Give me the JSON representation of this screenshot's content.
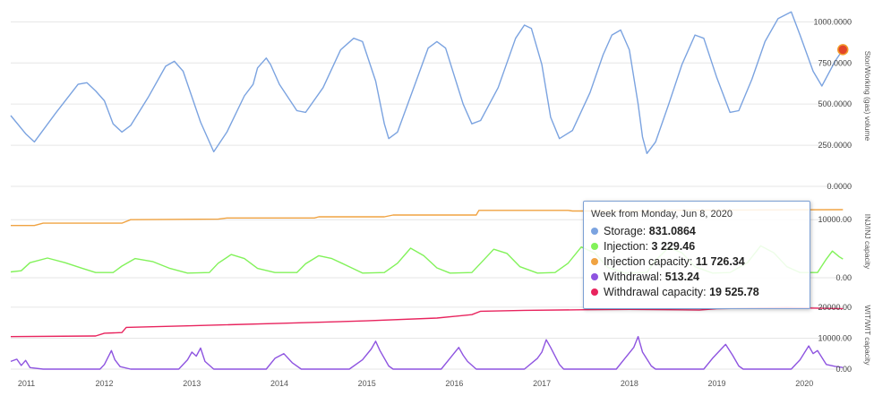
{
  "colors": {
    "storage": "#7ba3e0",
    "injection": "#82f25a",
    "injection_capacity": "#f0a342",
    "withdrawal": "#8e54e0",
    "withdrawal_capacity": "#e8245e",
    "gridline": "#e6e6e6"
  },
  "chart_data": [
    {
      "type": "line",
      "pane": "storage",
      "ylabel": "Stor/Working (gas) volume",
      "ylim": [
        0,
        1100
      ],
      "yticks": [
        "0.0000",
        "250.0000",
        "500.0000",
        "750.0000",
        "1000.0000"
      ],
      "ytick_values": [
        0,
        250,
        500,
        750,
        1000
      ],
      "x_ticks": [
        "2011",
        "2012",
        "2013",
        "2014",
        "2015",
        "2016",
        "2017",
        "2018",
        "2019",
        "2020"
      ],
      "x_tick_values": [
        2011,
        2012,
        2013,
        2014,
        2015,
        2016,
        2017,
        2018,
        2019,
        2020
      ],
      "xlim": [
        2010.93,
        2020.55
      ],
      "series": [
        {
          "key": "storage",
          "points": [
            [
              2010.93,
              430
            ],
            [
              2011.1,
              320
            ],
            [
              2011.2,
              270
            ],
            [
              2011.45,
              450
            ],
            [
              2011.7,
              620
            ],
            [
              2011.8,
              630
            ],
            [
              2011.9,
              580
            ],
            [
              2012.0,
              520
            ],
            [
              2012.1,
              380
            ],
            [
              2012.2,
              330
            ],
            [
              2012.3,
              370
            ],
            [
              2012.5,
              540
            ],
            [
              2012.7,
              730
            ],
            [
              2012.8,
              760
            ],
            [
              2012.9,
              700
            ],
            [
              2013.1,
              390
            ],
            [
              2013.25,
              210
            ],
            [
              2013.4,
              330
            ],
            [
              2013.6,
              550
            ],
            [
              2013.7,
              620
            ],
            [
              2013.75,
              720
            ],
            [
              2013.85,
              780
            ],
            [
              2013.9,
              740
            ],
            [
              2014.0,
              620
            ],
            [
              2014.2,
              460
            ],
            [
              2014.3,
              450
            ],
            [
              2014.5,
              600
            ],
            [
              2014.7,
              830
            ],
            [
              2014.85,
              900
            ],
            [
              2014.95,
              880
            ],
            [
              2015.1,
              640
            ],
            [
              2015.2,
              380
            ],
            [
              2015.25,
              290
            ],
            [
              2015.35,
              330
            ],
            [
              2015.55,
              620
            ],
            [
              2015.7,
              840
            ],
            [
              2015.8,
              880
            ],
            [
              2015.9,
              840
            ],
            [
              2016.1,
              500
            ],
            [
              2016.2,
              380
            ],
            [
              2016.3,
              400
            ],
            [
              2016.5,
              600
            ],
            [
              2016.7,
              900
            ],
            [
              2016.8,
              980
            ],
            [
              2016.88,
              960
            ],
            [
              2017.0,
              740
            ],
            [
              2017.1,
              420
            ],
            [
              2017.2,
              290
            ],
            [
              2017.35,
              340
            ],
            [
              2017.55,
              570
            ],
            [
              2017.7,
              800
            ],
            [
              2017.8,
              920
            ],
            [
              2017.9,
              950
            ],
            [
              2018.0,
              830
            ],
            [
              2018.1,
              500
            ],
            [
              2018.15,
              300
            ],
            [
              2018.2,
              200
            ],
            [
              2018.3,
              270
            ],
            [
              2018.45,
              500
            ],
            [
              2018.6,
              740
            ],
            [
              2018.75,
              920
            ],
            [
              2018.85,
              900
            ],
            [
              2019.0,
              660
            ],
            [
              2019.15,
              450
            ],
            [
              2019.25,
              460
            ],
            [
              2019.4,
              650
            ],
            [
              2019.55,
              880
            ],
            [
              2019.7,
              1020
            ],
            [
              2019.85,
              1060
            ],
            [
              2019.95,
              920
            ],
            [
              2020.1,
              700
            ],
            [
              2020.2,
              610
            ],
            [
              2020.35,
              760
            ],
            [
              2020.44,
              831
            ]
          ]
        }
      ],
      "marker": {
        "series": "storage",
        "x": 2020.44,
        "y": 831.0864
      }
    },
    {
      "type": "line",
      "pane": "injection",
      "ylabel": "INJ/INJ capacity",
      "ylim": [
        0,
        12500
      ],
      "yticks": [
        "0.00",
        "10000.00"
      ],
      "ytick_values": [
        0,
        10000
      ],
      "series": [
        {
          "key": "injection_capacity",
          "points": [
            [
              2010.93,
              9000
            ],
            [
              2011.2,
              9000
            ],
            [
              2011.3,
              9400
            ],
            [
              2012.2,
              9400
            ],
            [
              2012.3,
              10000
            ],
            [
              2013.3,
              10100
            ],
            [
              2013.4,
              10300
            ],
            [
              2014.4,
              10300
            ],
            [
              2014.45,
              10500
            ],
            [
              2015.2,
              10500
            ],
            [
              2015.3,
              10800
            ],
            [
              2016.25,
              10800
            ],
            [
              2016.28,
              11600
            ],
            [
              2017.3,
              11600
            ],
            [
              2017.35,
              11500
            ],
            [
              2018.0,
              11500
            ],
            [
              2018.3,
              11500
            ],
            [
              2018.4,
              11600
            ],
            [
              2020.44,
              11726
            ]
          ]
        },
        {
          "key": "injection",
          "points": [
            [
              2010.93,
              1000
            ],
            [
              2011.05,
              1200
            ],
            [
              2011.15,
              2600
            ],
            [
              2011.35,
              3400
            ],
            [
              2011.55,
              2600
            ],
            [
              2011.75,
              1600
            ],
            [
              2011.9,
              900
            ],
            [
              2012.1,
              900
            ],
            [
              2012.2,
              2000
            ],
            [
              2012.35,
              3300
            ],
            [
              2012.55,
              2800
            ],
            [
              2012.75,
              1600
            ],
            [
              2012.95,
              800
            ],
            [
              2013.2,
              900
            ],
            [
              2013.3,
              2500
            ],
            [
              2013.45,
              4000
            ],
            [
              2013.6,
              3300
            ],
            [
              2013.75,
              1600
            ],
            [
              2013.95,
              900
            ],
            [
              2014.2,
              900
            ],
            [
              2014.3,
              2400
            ],
            [
              2014.45,
              3800
            ],
            [
              2014.6,
              3300
            ],
            [
              2014.8,
              1900
            ],
            [
              2014.95,
              800
            ],
            [
              2015.2,
              900
            ],
            [
              2015.35,
              2500
            ],
            [
              2015.5,
              5100
            ],
            [
              2015.65,
              3800
            ],
            [
              2015.8,
              1700
            ],
            [
              2015.95,
              800
            ],
            [
              2016.2,
              900
            ],
            [
              2016.3,
              2500
            ],
            [
              2016.45,
              4900
            ],
            [
              2016.6,
              4200
            ],
            [
              2016.75,
              1900
            ],
            [
              2016.95,
              800
            ],
            [
              2017.15,
              900
            ],
            [
              2017.3,
              2500
            ],
            [
              2017.45,
              5300
            ],
            [
              2017.6,
              4300
            ],
            [
              2017.75,
              1800
            ],
            [
              2017.95,
              800
            ],
            [
              2018.2,
              900
            ],
            [
              2018.3,
              3000
            ],
            [
              2018.45,
              5200
            ],
            [
              2018.6,
              4300
            ],
            [
              2018.75,
              1900
            ],
            [
              2018.95,
              800
            ],
            [
              2019.15,
              900
            ],
            [
              2019.35,
              2600
            ],
            [
              2019.5,
              5500
            ],
            [
              2019.65,
              4300
            ],
            [
              2019.8,
              1900
            ],
            [
              2019.95,
              900
            ],
            [
              2020.15,
              900
            ],
            [
              2020.25,
              3200
            ],
            [
              2020.32,
              4600
            ],
            [
              2020.4,
              3600
            ],
            [
              2020.44,
              3229
            ]
          ]
        }
      ]
    },
    {
      "type": "line",
      "pane": "withdrawal",
      "ylabel": "WIT/WIT capacity",
      "ylim": [
        0,
        22000
      ],
      "yticks": [
        "0.00",
        "10000.00",
        "20000.00"
      ],
      "ytick_values": [
        0,
        10000,
        20000
      ],
      "series": [
        {
          "key": "withdrawal_capacity",
          "points": [
            [
              2010.93,
              10500
            ],
            [
              2011.9,
              10700
            ],
            [
              2012.0,
              11600
            ],
            [
              2012.2,
              11800
            ],
            [
              2012.25,
              13500
            ],
            [
              2013.0,
              14000
            ],
            [
              2014.0,
              14800
            ],
            [
              2015.0,
              15600
            ],
            [
              2015.8,
              16500
            ],
            [
              2016.2,
              17600
            ],
            [
              2016.3,
              18700
            ],
            [
              2016.8,
              19000
            ],
            [
              2017.5,
              19200
            ],
            [
              2018.0,
              19300
            ],
            [
              2018.8,
              19100
            ],
            [
              2019.0,
              19500
            ],
            [
              2019.8,
              19900
            ],
            [
              2020.44,
              19525
            ]
          ]
        },
        {
          "key": "withdrawal",
          "points": [
            [
              2010.93,
              2500
            ],
            [
              2011.0,
              3200
            ],
            [
              2011.05,
              1200
            ],
            [
              2011.1,
              2800
            ],
            [
              2011.15,
              500
            ],
            [
              2011.3,
              0
            ],
            [
              2011.95,
              0
            ],
            [
              2012.0,
              1500
            ],
            [
              2012.08,
              6000
            ],
            [
              2012.12,
              3000
            ],
            [
              2012.18,
              800
            ],
            [
              2012.3,
              0
            ],
            [
              2012.85,
              0
            ],
            [
              2012.95,
              3000
            ],
            [
              2013.0,
              5500
            ],
            [
              2013.05,
              4200
            ],
            [
              2013.1,
              6800
            ],
            [
              2013.15,
              2500
            ],
            [
              2013.25,
              0
            ],
            [
              2013.85,
              0
            ],
            [
              2013.95,
              3500
            ],
            [
              2014.05,
              5000
            ],
            [
              2014.15,
              2000
            ],
            [
              2014.25,
              0
            ],
            [
              2014.8,
              0
            ],
            [
              2014.95,
              3000
            ],
            [
              2015.05,
              6500
            ],
            [
              2015.1,
              9000
            ],
            [
              2015.15,
              6000
            ],
            [
              2015.25,
              1000
            ],
            [
              2015.3,
              0
            ],
            [
              2015.85,
              0
            ],
            [
              2015.95,
              3500
            ],
            [
              2016.05,
              7000
            ],
            [
              2016.1,
              4500
            ],
            [
              2016.15,
              2500
            ],
            [
              2016.25,
              0
            ],
            [
              2016.8,
              0
            ],
            [
              2016.95,
              3500
            ],
            [
              2017.0,
              5500
            ],
            [
              2017.05,
              9500
            ],
            [
              2017.1,
              7000
            ],
            [
              2017.2,
              1500
            ],
            [
              2017.25,
              0
            ],
            [
              2017.85,
              0
            ],
            [
              2017.95,
              3500
            ],
            [
              2018.05,
              7000
            ],
            [
              2018.1,
              10500
            ],
            [
              2018.15,
              5500
            ],
            [
              2018.25,
              1000
            ],
            [
              2018.3,
              0
            ],
            [
              2018.85,
              0
            ],
            [
              2018.95,
              3500
            ],
            [
              2019.1,
              8000
            ],
            [
              2019.18,
              4500
            ],
            [
              2019.25,
              1000
            ],
            [
              2019.3,
              0
            ],
            [
              2019.85,
              0
            ],
            [
              2019.95,
              3000
            ],
            [
              2020.05,
              7500
            ],
            [
              2020.1,
              5000
            ],
            [
              2020.15,
              6000
            ],
            [
              2020.25,
              1500
            ],
            [
              2020.35,
              900
            ],
            [
              2020.44,
              513
            ]
          ]
        }
      ]
    }
  ],
  "tooltip": {
    "header": "Week from Monday, Jun 8, 2020",
    "rows": [
      {
        "key": "storage",
        "label": "Storage:",
        "value": "831.0864"
      },
      {
        "key": "injection",
        "label": "Injection:",
        "value": "3 229.46"
      },
      {
        "key": "injection_capacity",
        "label": "Injection capacity:",
        "value": "11 726.34"
      },
      {
        "key": "withdrawal",
        "label": "Withdrawal:",
        "value": "513.24"
      },
      {
        "key": "withdrawal_capacity",
        "label": "Withdrawal capacity:",
        "value": "19 525.78"
      }
    ]
  }
}
